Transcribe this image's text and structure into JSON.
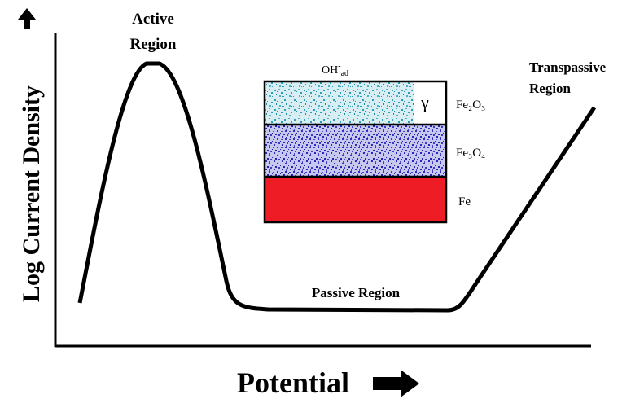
{
  "axes": {
    "y_label": "Log Current Density",
    "x_label": "Potential"
  },
  "regions": {
    "active": [
      "Active",
      "Region"
    ],
    "passive": "Passive Region",
    "transpassive": [
      "Transpassive",
      "Region"
    ]
  },
  "layers": {
    "adsorbed": {
      "base": "OH",
      "sup": "-",
      "sub": "ad"
    },
    "gamma": "γ",
    "items": [
      "Fe₂O₃",
      "Fe₃O₄",
      "Fe"
    ]
  }
}
